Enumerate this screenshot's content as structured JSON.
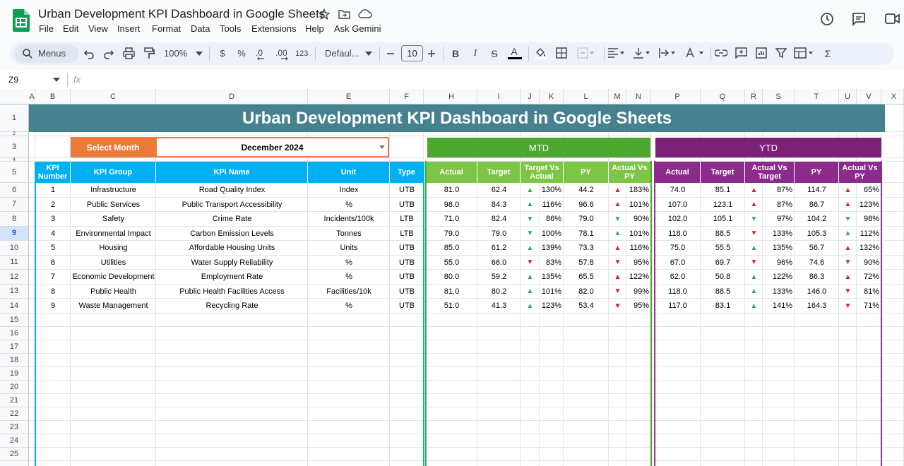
{
  "app": {
    "title": "Urban Development KPI Dashboard in Google Sheets",
    "menus": [
      "File",
      "Edit",
      "View",
      "Insert",
      "Format",
      "Data",
      "Tools",
      "Extensions",
      "Help",
      "Ask Gemini"
    ]
  },
  "toolbar": {
    "search": "Menus",
    "zoom": "100%",
    "currency": "$",
    "percent": "%",
    "decrease_decimal": ".0",
    "increase_decimal": ".00",
    "number_format": "123",
    "font": "Defaul...",
    "font_size": "10",
    "bold": "B",
    "italic": "I",
    "strikethrough": "S",
    "text_color": "A",
    "functions": "Σ"
  },
  "formula_bar": {
    "name_box": "Z9",
    "fx": "fx"
  },
  "sheet": {
    "columns": [
      "A",
      "B",
      "C",
      "D",
      "E",
      "F",
      "H",
      "I",
      "J",
      "K",
      "L",
      "M",
      "N",
      "P",
      "Q",
      "R",
      "S",
      "T",
      "U",
      "V",
      "X"
    ],
    "rows": [
      1,
      2,
      3,
      4,
      5,
      6,
      7,
      8,
      9,
      10,
      11,
      12,
      13,
      14,
      15,
      16,
      17,
      18,
      19,
      20,
      21,
      22,
      23,
      24,
      25
    ],
    "active_row": 9
  },
  "dashboard": {
    "title": "Urban Development KPI Dashboard in Google Sheets",
    "month_label": "Select Month",
    "month": "December 2024",
    "mtd_label": "MTD",
    "ytd_label": "YTD",
    "kpi_headers": [
      "KPI Number",
      "KPI Group",
      "KPI Name",
      "Unit",
      "Type"
    ],
    "mtd_headers": [
      "Actual",
      "Target",
      "Target Vs Actual",
      "PY",
      "Actual Vs PY"
    ],
    "ytd_headers": [
      "Actual",
      "Target",
      "Actual Vs Target",
      "PY",
      "Actual Vs PY"
    ],
    "kpis": [
      {
        "number": "1",
        "group": "Infrastructure",
        "name": "Road Quality Index",
        "unit": "Index",
        "type": "UTB",
        "mtd": {
          "actual": "81.0",
          "target": "62.4",
          "vs_target": {
            "arrow": "▲",
            "color": "green",
            "value": "130%"
          },
          "py": "44.2",
          "vs_py": {
            "arrow": "▲",
            "color": "red",
            "value": "183%"
          }
        },
        "ytd": {
          "actual": "74.0",
          "target": "85.1",
          "vs_target": {
            "arrow": "▲",
            "color": "red",
            "value": "87%"
          },
          "py": "114.7",
          "vs_py": {
            "arrow": "▲",
            "color": "red",
            "value": "65%"
          }
        }
      },
      {
        "number": "2",
        "group": "Public Services",
        "name": "Public Transport Accessibility",
        "unit": "%",
        "type": "UTB",
        "mtd": {
          "actual": "98.0",
          "target": "84.3",
          "vs_target": {
            "arrow": "▲",
            "color": "green",
            "value": "116%"
          },
          "py": "96.6",
          "vs_py": {
            "arrow": "▲",
            "color": "red",
            "value": "101%"
          }
        },
        "ytd": {
          "actual": "107.0",
          "target": "123.1",
          "vs_target": {
            "arrow": "▲",
            "color": "red",
            "value": "87%"
          },
          "py": "86.7",
          "vs_py": {
            "arrow": "▲",
            "color": "red",
            "value": "123%"
          }
        }
      },
      {
        "number": "3",
        "group": "Safety",
        "name": "Crime Rate",
        "unit": "Incidents/100k",
        "type": "LTB",
        "mtd": {
          "actual": "71.0",
          "target": "82.4",
          "vs_target": {
            "arrow": "▼",
            "color": "green",
            "value": "86%"
          },
          "py": "79.0",
          "vs_py": {
            "arrow": "▼",
            "color": "green",
            "value": "90%"
          }
        },
        "ytd": {
          "actual": "102.0",
          "target": "105.1",
          "vs_target": {
            "arrow": "▼",
            "color": "green",
            "value": "97%"
          },
          "py": "104.2",
          "vs_py": {
            "arrow": "▼",
            "color": "green",
            "value": "98%"
          }
        }
      },
      {
        "number": "4",
        "group": "Environmental Impact",
        "name": "Carbon Emission Levels",
        "unit": "Tonnes",
        "type": "LTB",
        "mtd": {
          "actual": "79.0",
          "target": "79.0",
          "vs_target": {
            "arrow": "▼",
            "color": "green",
            "value": "100%"
          },
          "py": "78.1",
          "vs_py": {
            "arrow": "▲",
            "color": "green",
            "value": "101%"
          }
        },
        "ytd": {
          "actual": "118.0",
          "target": "88.5",
          "vs_target": {
            "arrow": "▼",
            "color": "red",
            "value": "133%"
          },
          "py": "105.3",
          "vs_py": {
            "arrow": "▲",
            "color": "green",
            "value": "112%"
          }
        }
      },
      {
        "number": "5",
        "group": "Housing",
        "name": "Affordable Housing Units",
        "unit": "Units",
        "type": "UTB",
        "mtd": {
          "actual": "85.0",
          "target": "61.2",
          "vs_target": {
            "arrow": "▲",
            "color": "green",
            "value": "139%"
          },
          "py": "73.3",
          "vs_py": {
            "arrow": "▲",
            "color": "red",
            "value": "116%"
          }
        },
        "ytd": {
          "actual": "75.0",
          "target": "55.5",
          "vs_target": {
            "arrow": "▲",
            "color": "green",
            "value": "135%"
          },
          "py": "56.7",
          "vs_py": {
            "arrow": "▲",
            "color": "red",
            "value": "132%"
          }
        }
      },
      {
        "number": "6",
        "group": "Utilities",
        "name": "Water Supply Reliability",
        "unit": "%",
        "type": "UTB",
        "mtd": {
          "actual": "55.0",
          "target": "66.0",
          "vs_target": {
            "arrow": "▼",
            "color": "red",
            "value": "83%"
          },
          "py": "57.8",
          "vs_py": {
            "arrow": "▼",
            "color": "red",
            "value": "95%"
          }
        },
        "ytd": {
          "actual": "67.0",
          "target": "69.7",
          "vs_target": {
            "arrow": "▼",
            "color": "red",
            "value": "96%"
          },
          "py": "74.6",
          "vs_py": {
            "arrow": "▼",
            "color": "red",
            "value": "90%"
          }
        }
      },
      {
        "number": "7",
        "group": "Economic Development",
        "name": "Employment Rate",
        "unit": "%",
        "type": "UTB",
        "mtd": {
          "actual": "80.0",
          "target": "59.2",
          "vs_target": {
            "arrow": "▲",
            "color": "green",
            "value": "135%"
          },
          "py": "65.5",
          "vs_py": {
            "arrow": "▲",
            "color": "red",
            "value": "122%"
          }
        },
        "ytd": {
          "actual": "62.0",
          "target": "50.8",
          "vs_target": {
            "arrow": "▲",
            "color": "green",
            "value": "122%"
          },
          "py": "86.3",
          "vs_py": {
            "arrow": "▲",
            "color": "red",
            "value": "72%"
          }
        }
      },
      {
        "number": "8",
        "group": "Public Health",
        "name": "Public Health Facilities Access",
        "unit": "Facilities/10k",
        "type": "UTB",
        "mtd": {
          "actual": "81.0",
          "target": "80.2",
          "vs_target": {
            "arrow": "▲",
            "color": "green",
            "value": "101%"
          },
          "py": "82.0",
          "vs_py": {
            "arrow": "▼",
            "color": "red",
            "value": "99%"
          }
        },
        "ytd": {
          "actual": "118.0",
          "target": "88.5",
          "vs_target": {
            "arrow": "▲",
            "color": "green",
            "value": "133%"
          },
          "py": "146.0",
          "vs_py": {
            "arrow": "▼",
            "color": "red",
            "value": "81%"
          }
        }
      },
      {
        "number": "9",
        "group": "Waste Management",
        "name": "Recycling Rate",
        "unit": "%",
        "type": "UTB",
        "mtd": {
          "actual": "51.0",
          "target": "41.3",
          "vs_target": {
            "arrow": "▲",
            "color": "green",
            "value": "123%"
          },
          "py": "53.4",
          "vs_py": {
            "arrow": "▼",
            "color": "red",
            "value": "95%"
          }
        },
        "ytd": {
          "actual": "117.0",
          "target": "83.1",
          "vs_target": {
            "arrow": "▲",
            "color": "green",
            "value": "141%"
          },
          "py": "164.3",
          "vs_py": {
            "arrow": "▼",
            "color": "red",
            "value": "71%"
          }
        }
      }
    ]
  }
}
